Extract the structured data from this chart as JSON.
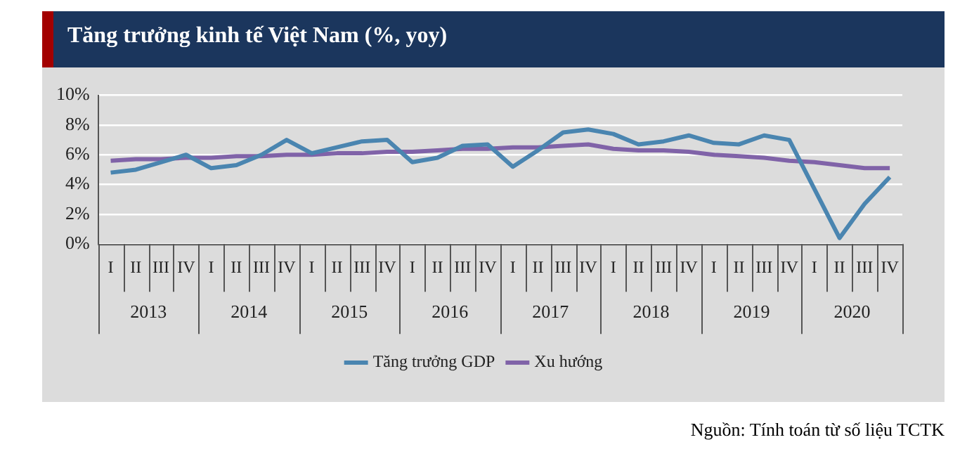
{
  "chart_data": {
    "type": "line",
    "title": "Tăng trưởng kinh tế Việt Nam (%, yoy)",
    "categories": [
      "I",
      "II",
      "III",
      "IV",
      "I",
      "II",
      "III",
      "IV",
      "I",
      "II",
      "III",
      "IV",
      "I",
      "II",
      "III",
      "IV",
      "I",
      "II",
      "III",
      "IV",
      "I",
      "II",
      "III",
      "IV",
      "I",
      "II",
      "III",
      "IV",
      "I",
      "II",
      "III",
      "IV"
    ],
    "series": [
      {
        "name": "Tăng trưởng GDP",
        "color": "#4a85b0",
        "values": [
          4.8,
          5.0,
          5.5,
          6.0,
          5.1,
          5.3,
          6.0,
          7.0,
          6.1,
          6.5,
          6.9,
          7.0,
          5.5,
          5.8,
          6.6,
          6.7,
          5.2,
          6.3,
          7.5,
          7.7,
          7.4,
          6.7,
          6.9,
          7.3,
          6.8,
          6.7,
          7.3,
          7.0,
          3.7,
          0.4,
          2.7,
          4.5
        ]
      },
      {
        "name": "Xu hướng",
        "color": "#8063a8",
        "values": [
          5.6,
          5.7,
          5.7,
          5.8,
          5.8,
          5.9,
          5.9,
          6.0,
          6.0,
          6.1,
          6.1,
          6.2,
          6.2,
          6.3,
          6.4,
          6.4,
          6.5,
          6.5,
          6.6,
          6.7,
          6.4,
          6.3,
          6.3,
          6.2,
          6.0,
          5.9,
          5.8,
          5.6,
          5.5,
          5.3,
          5.1,
          5.1
        ]
      }
    ],
    "ylim": [
      0,
      10
    ],
    "yticks": [
      {
        "value": 0,
        "label": "0%"
      },
      {
        "value": 2,
        "label": "2%"
      },
      {
        "value": 4,
        "label": "4%"
      },
      {
        "value": 6,
        "label": "6%"
      },
      {
        "value": 8,
        "label": "8%"
      },
      {
        "value": 10,
        "label": "10%"
      }
    ],
    "grid": "y",
    "legend": "bottom",
    "marker": "none",
    "line_style": "solid",
    "annotations": [
      "2013",
      "2014",
      "2015",
      "2016",
      "2017",
      "2018",
      "2019",
      "2020",
      "Nguồn: Tính toán từ số liệu TCTK"
    ]
  }
}
